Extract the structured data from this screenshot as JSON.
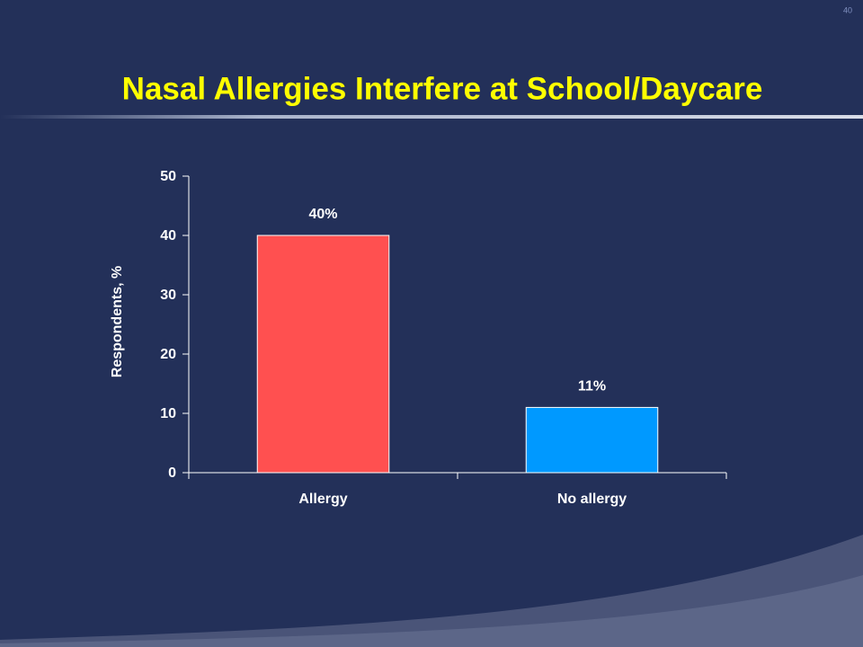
{
  "slide_number": "40",
  "chart_data": {
    "type": "bar",
    "title": "Nasal Allergies Interfere at School/Daycare",
    "ylabel": "Respondents, %",
    "categories": [
      "Allergy",
      "No allergy"
    ],
    "values": [
      40,
      11
    ],
    "value_labels": [
      "40%",
      "11%"
    ],
    "colors": [
      "#ff5050",
      "#0099ff"
    ],
    "ylim": [
      0,
      50
    ],
    "yticks": [
      0,
      10,
      20,
      30,
      40,
      50
    ],
    "grid": false
  }
}
